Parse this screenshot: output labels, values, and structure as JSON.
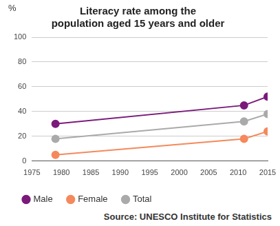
{
  "chart_data": {
    "type": "line",
    "title": [
      "Literacy rate among the",
      "population aged 15 years and older"
    ],
    "ylabel": "%",
    "x": [
      1979,
      2011,
      2015
    ],
    "series": [
      {
        "name": "Male",
        "color": "#7b1a7b",
        "values": [
          30,
          45,
          52
        ]
      },
      {
        "name": "Female",
        "color": "#f5895b",
        "values": [
          5,
          18,
          24
        ]
      },
      {
        "name": "Total",
        "color": "#aaaaaa",
        "values": [
          18,
          32,
          38
        ]
      }
    ],
    "xlim": [
      1975,
      2015
    ],
    "xticks": [
      1975,
      1980,
      1985,
      1990,
      1995,
      2000,
      2005,
      2010,
      2015
    ],
    "ylim": [
      0,
      100
    ],
    "yticks": [
      0,
      20,
      40,
      60,
      80,
      100
    ],
    "grid": "y",
    "legend": "bottom",
    "marker": "circle",
    "source": "Source: UNESCO Institute for Statistics"
  }
}
